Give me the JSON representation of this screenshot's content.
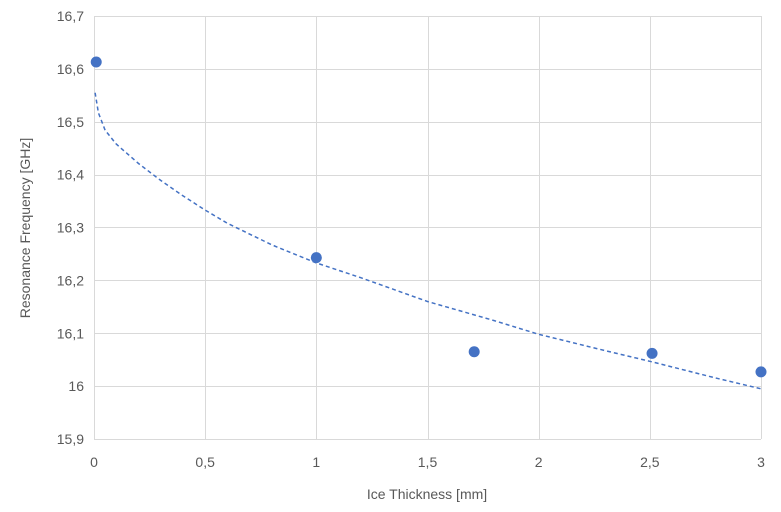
{
  "chart_data": {
    "type": "scatter",
    "title": "",
    "xlabel": "Ice Thickness [mm]",
    "ylabel": "Resonance Frequency [GHz]",
    "xlim": [
      0,
      3
    ],
    "ylim": [
      15.9,
      16.7
    ],
    "x_ticks": [
      0,
      0.5,
      1,
      1.5,
      2,
      2.5,
      3
    ],
    "x_tick_labels": [
      "0",
      "0,5",
      "1",
      "1,5",
      "2",
      "2,5",
      "3"
    ],
    "y_ticks": [
      15.9,
      16.0,
      16.1,
      16.2,
      16.3,
      16.4,
      16.5,
      16.6,
      16.7
    ],
    "y_tick_labels": [
      "15,9",
      "16",
      "16,1",
      "16,2",
      "16,3",
      "16,4",
      "16,5",
      "16,6",
      "16,7"
    ],
    "grid": true,
    "legend": "none",
    "series": [
      {
        "x": [
          0.01,
          1.0,
          1.71,
          2.51,
          3.0
        ],
        "y": [
          16.613,
          16.243,
          16.065,
          16.062,
          16.027
        ],
        "color": "#4472C4",
        "marker": "circle"
      }
    ],
    "trendline": {
      "type": "dashed",
      "color": "#4472C4",
      "x": [
        0.005,
        0.02,
        0.05,
        0.1,
        0.2,
        0.3,
        0.4,
        0.5,
        0.6,
        0.8,
        1.0,
        1.2,
        1.5,
        1.8,
        2.0,
        2.3,
        2.5,
        2.8,
        3.0
      ],
      "y": [
        16.555,
        16.517,
        16.484,
        16.458,
        16.421,
        16.389,
        16.36,
        16.333,
        16.308,
        16.267,
        16.233,
        16.205,
        16.16,
        16.124,
        16.098,
        16.067,
        16.047,
        16.015,
        15.995
      ]
    }
  }
}
